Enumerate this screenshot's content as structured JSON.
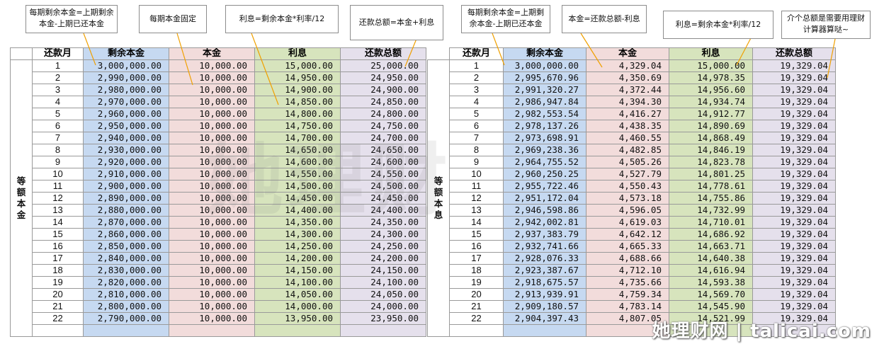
{
  "headers": [
    "还款月",
    "剩余本金",
    "本金",
    "利息",
    "还款总额"
  ],
  "left": {
    "label": "等额本金",
    "rows": [
      [
        "1",
        "3,000,000.00",
        "10,000.00",
        "15,000.00",
        "25,000.00"
      ],
      [
        "2",
        "2,990,000.00",
        "10,000.00",
        "14,950.00",
        "24,950.00"
      ],
      [
        "3",
        "2,980,000.00",
        "10,000.00",
        "14,900.00",
        "24,900.00"
      ],
      [
        "4",
        "2,970,000.00",
        "10,000.00",
        "14,850.00",
        "24,850.00"
      ],
      [
        "5",
        "2,960,000.00",
        "10,000.00",
        "14,800.00",
        "24,800.00"
      ],
      [
        "6",
        "2,950,000.00",
        "10,000.00",
        "14,750.00",
        "24,750.00"
      ],
      [
        "7",
        "2,940,000.00",
        "10,000.00",
        "14,700.00",
        "24,700.00"
      ],
      [
        "8",
        "2,930,000.00",
        "10,000.00",
        "14,650.00",
        "24,650.00"
      ],
      [
        "9",
        "2,920,000.00",
        "10,000.00",
        "14,600.00",
        "24,600.00"
      ],
      [
        "10",
        "2,910,000.00",
        "10,000.00",
        "14,550.00",
        "24,550.00"
      ],
      [
        "11",
        "2,900,000.00",
        "10,000.00",
        "14,500.00",
        "24,500.00"
      ],
      [
        "12",
        "2,890,000.00",
        "10,000.00",
        "14,450.00",
        "24,450.00"
      ],
      [
        "13",
        "2,880,000.00",
        "10,000.00",
        "14,400.00",
        "24,400.00"
      ],
      [
        "14",
        "2,870,000.00",
        "10,000.00",
        "14,350.00",
        "24,350.00"
      ],
      [
        "15",
        "2,860,000.00",
        "10,000.00",
        "14,300.00",
        "24,300.00"
      ],
      [
        "16",
        "2,850,000.00",
        "10,000.00",
        "14,250.00",
        "24,250.00"
      ],
      [
        "17",
        "2,840,000.00",
        "10,000.00",
        "14,200.00",
        "24,200.00"
      ],
      [
        "18",
        "2,830,000.00",
        "10,000.00",
        "14,150.00",
        "24,150.00"
      ],
      [
        "19",
        "2,820,000.00",
        "10,000.00",
        "14,100.00",
        "24,100.00"
      ],
      [
        "20",
        "2,810,000.00",
        "10,000.00",
        "14,050.00",
        "24,050.00"
      ],
      [
        "21",
        "2,800,000.00",
        "10,000.00",
        "14,000.00",
        "24,000.00"
      ],
      [
        "22",
        "2,790,000.00",
        "10,000.00",
        "13,950.00",
        "23,950.00"
      ]
    ]
  },
  "right": {
    "label": "等额本息",
    "rows": [
      [
        "1",
        "3,000,000.00",
        "4,329.04",
        "15,000.00",
        "19,329.04"
      ],
      [
        "2",
        "2,995,670.96",
        "4,350.69",
        "14,978.35",
        "19,329.04"
      ],
      [
        "3",
        "2,991,320.27",
        "4,372.44",
        "14,956.60",
        "19,329.04"
      ],
      [
        "4",
        "2,986,947.84",
        "4,394.30",
        "14,934.74",
        "19,329.04"
      ],
      [
        "5",
        "2,982,553.54",
        "4,416.27",
        "14,912.77",
        "19,329.04"
      ],
      [
        "6",
        "2,978,137.26",
        "4,438.35",
        "14,890.69",
        "19,329.04"
      ],
      [
        "7",
        "2,973,698.91",
        "4,460.55",
        "14,868.49",
        "19,329.04"
      ],
      [
        "8",
        "2,969,238.36",
        "4,482.85",
        "14,846.19",
        "19,329.04"
      ],
      [
        "9",
        "2,964,755.52",
        "4,505.26",
        "14,823.78",
        "19,329.04"
      ],
      [
        "10",
        "2,960,250.25",
        "4,527.79",
        "14,801.25",
        "19,329.04"
      ],
      [
        "11",
        "2,955,722.46",
        "4,550.43",
        "14,778.61",
        "19,329.04"
      ],
      [
        "12",
        "2,951,172.04",
        "4,573.18",
        "14,755.86",
        "19,329.04"
      ],
      [
        "13",
        "2,946,598.86",
        "4,596.05",
        "14,732.99",
        "19,329.04"
      ],
      [
        "14",
        "2,942,002.81",
        "4,619.03",
        "14,710.01",
        "19,329.04"
      ],
      [
        "15",
        "2,937,383.79",
        "4,642.12",
        "14,686.92",
        "19,329.04"
      ],
      [
        "16",
        "2,932,741.66",
        "4,665.33",
        "14,663.71",
        "19,329.04"
      ],
      [
        "17",
        "2,928,076.33",
        "4,688.66",
        "14,640.38",
        "19,329.04"
      ],
      [
        "18",
        "2,923,387.67",
        "4,712.10",
        "14,616.94",
        "19,329.04"
      ],
      [
        "19",
        "2,918,675.57",
        "4,735.66",
        "14,593.38",
        "19,329.04"
      ],
      [
        "20",
        "2,913,939.91",
        "4,759.34",
        "14,569.70",
        "19,329.04"
      ],
      [
        "21",
        "2,909,180.57",
        "4,783.14",
        "14,545.90",
        "19,329.04"
      ],
      [
        "22",
        "2,904,397.43",
        "4,807.05",
        "14,521.99",
        "19,329.04"
      ]
    ]
  },
  "notes": {
    "n1": "每期剩余本金=上期剩余本金-上期已还本金",
    "n2": "每期本金固定",
    "n3": "利息=剩余本金*利率/12",
    "n4": "还款总额=本金+利息",
    "n5": "每期剩余本金=上期剩余本金-上期已还本金",
    "n6": "本金=还款总额-利息",
    "n7": "利息=剩余本金*利率/12",
    "n8": "介个总额是需要用理财计算器算哒~"
  },
  "watermark": "她理财网 | talicai.com"
}
